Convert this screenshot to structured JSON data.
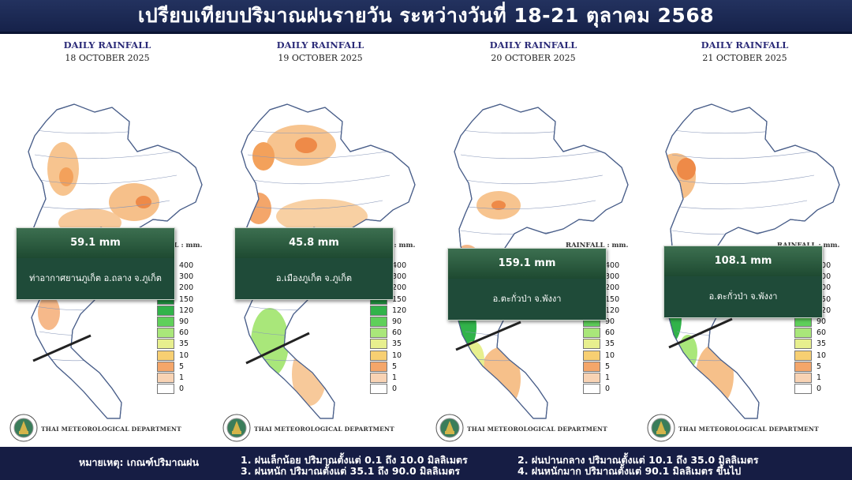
{
  "header": {
    "title": "เปรียบเทียบปริมาณฝนรายวัน ระหว่างวันที่ 18-21 ตุลาคม 2568"
  },
  "panels": [
    {
      "title": "DAILY RAINFALL",
      "date": "18 OCTOBER   2025",
      "rainfall_label": "RAINFALL : mm.",
      "value": "59.1 mm",
      "location": "ท่าอากาศยานภูเก็ต อ.ถลาง จ.ภูเก็ต",
      "department": "THAI METEOROLOGICAL DEPARTMENT"
    },
    {
      "title": "DAILY RAINFALL",
      "date": "19 OCTOBER   2025",
      "rainfall_label": "RAINFALL : mm.",
      "value": "45.8 mm",
      "location": "อ.เมืองภูเก็ต จ.ภูเก็ต",
      "department": "THAI METEOROLOGICAL DEPARTMENT"
    },
    {
      "title": "DAILY RAINFALL",
      "date": "20 OCTOBER   2025",
      "rainfall_label": "RAINFALL : mm.",
      "value": "159.1 mm",
      "location": "อ.ตะกั่วป่า จ.พังงา",
      "department": "THAI METEOROLOGICAL DEPARTMENT"
    },
    {
      "title": "DAILY RAINFALL",
      "date": "21 OCTOBER   2025",
      "rainfall_label": "RAINFALL : mm.",
      "value": "108.1 mm",
      "location": "อ.ตะกั่วป่า จ.พังงา",
      "department": "THAI METEOROLOGICAL DEPARTMENT"
    }
  ],
  "legend": {
    "labels": [
      "400",
      "300",
      "200",
      "150",
      "120",
      "90",
      "60",
      "35",
      "10",
      "5",
      "1",
      "0"
    ],
    "colors": [
      "#7b5fe0",
      "#3f8fb0",
      "#1c6a3e",
      "#1f8f3f",
      "#31b34a",
      "#5fd05a",
      "#a9e77a",
      "#e7ef8e",
      "#f7cf72",
      "#f4a66a",
      "#f8d3b4",
      "#ffffff"
    ]
  },
  "footer": {
    "label": "หมายเหตุ: เกณฑ์ปริมาณฝน",
    "items": [
      "1. ฝนเล็กน้อย ปริมาณตั้งแต่ 0.1 ถึง 10.0 มิลลิเมตร",
      "2. ฝนปานกลาง ปริมาณตั้งแต่ 10.1 ถึง 35.0 มิลลิเมตร",
      "3. ฝนหนัก ปริมาณตั้งแต่ 35.1 ถึง 90.0 มิลลิเมตร",
      "4. ฝนหนักมาก ปริมาณตั้งแต่ 90.1 มิลลิเมตร ขึ้นไป"
    ]
  }
}
